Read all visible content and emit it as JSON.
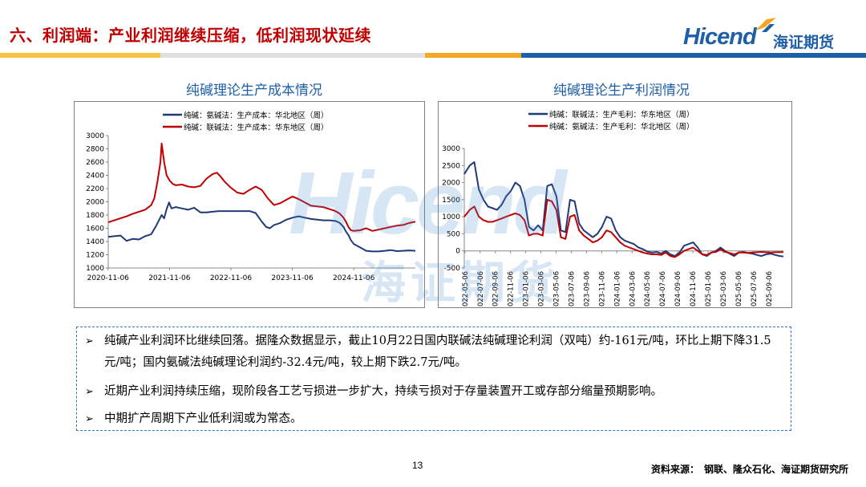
{
  "header": {
    "title": "六、利润端：产业利润继续压缩，低利润现状延续",
    "logo_en": "Hicend",
    "logo_cn": "海证期货",
    "colors": {
      "title": "#c00000",
      "brand_blue": "#1f5fa8",
      "band_blue": "#1f5fa8",
      "band_orange": "#f5a623"
    }
  },
  "watermark": {
    "en": "Hicend",
    "cn": "海证期货"
  },
  "charts": {
    "left_title": "纯碱理论生产成本情况",
    "right_title": "纯碱理论生产利润情况"
  },
  "chart_data": [
    {
      "type": "line",
      "title": "纯碱理论生产成本情况",
      "ylim": [
        1000,
        3000
      ],
      "yticks": [
        "3000",
        "2800",
        "2600",
        "2400",
        "2200",
        "2000",
        "1800",
        "1600",
        "1400",
        "1200",
        "1000"
      ],
      "xticks": [
        "2020-11-06",
        "2021-11-06",
        "2022-11-06",
        "2023-11-06",
        "2024-11-06"
      ],
      "x_range": [
        2020.85,
        2025.85
      ],
      "grid": false,
      "legend": "top",
      "series": [
        {
          "name": "纯碱：氨碱法：生产成本：华北地区（周）",
          "color": "#1f3a7a",
          "x": [
            2020.85,
            2020.95,
            2021.05,
            2021.15,
            2021.25,
            2021.35,
            2021.45,
            2021.55,
            2021.62,
            2021.68,
            2021.72,
            2021.76,
            2021.8,
            2021.84,
            2021.88,
            2021.95,
            2022.05,
            2022.15,
            2022.25,
            2022.35,
            2022.45,
            2022.55,
            2022.65,
            2022.75,
            2022.85,
            2022.95,
            2023.05,
            2023.15,
            2023.25,
            2023.35,
            2023.42,
            2023.48,
            2023.55,
            2023.65,
            2023.75,
            2023.85,
            2023.95,
            2024.05,
            2024.15,
            2024.25,
            2024.35,
            2024.45,
            2024.55,
            2024.62,
            2024.68,
            2024.72,
            2024.76,
            2024.8,
            2024.85,
            2024.95,
            2025.05,
            2025.15,
            2025.25,
            2025.35,
            2025.45,
            2025.55,
            2025.65,
            2025.75,
            2025.85
          ],
          "values": [
            1470,
            1480,
            1490,
            1410,
            1440,
            1430,
            1480,
            1510,
            1620,
            1730,
            1800,
            1750,
            1890,
            1990,
            1900,
            1920,
            1900,
            1880,
            1910,
            1840,
            1840,
            1850,
            1860,
            1860,
            1860,
            1860,
            1860,
            1860,
            1830,
            1700,
            1620,
            1600,
            1650,
            1680,
            1730,
            1760,
            1780,
            1760,
            1740,
            1730,
            1720,
            1720,
            1710,
            1680,
            1620,
            1550,
            1500,
            1420,
            1360,
            1310,
            1260,
            1250,
            1250,
            1260,
            1270,
            1255,
            1260,
            1265,
            1260
          ]
        },
        {
          "name": "纯碱：联碱法：生产成本：华东地区（周）",
          "color": "#c00000",
          "x": [
            2020.85,
            2020.95,
            2021.05,
            2021.15,
            2021.25,
            2021.35,
            2021.45,
            2021.55,
            2021.6,
            2021.65,
            2021.7,
            2021.72,
            2021.76,
            2021.8,
            2021.85,
            2021.9,
            2021.95,
            2022.05,
            2022.15,
            2022.25,
            2022.35,
            2022.45,
            2022.55,
            2022.62,
            2022.68,
            2022.75,
            2022.85,
            2022.95,
            2023.05,
            2023.15,
            2023.25,
            2023.35,
            2023.45,
            2023.55,
            2023.65,
            2023.75,
            2023.85,
            2023.95,
            2024.05,
            2024.15,
            2024.25,
            2024.35,
            2024.45,
            2024.55,
            2024.62,
            2024.68,
            2024.72,
            2024.76,
            2024.8,
            2024.85,
            2024.95,
            2025.05,
            2025.15,
            2025.25,
            2025.35,
            2025.45,
            2025.55,
            2025.65,
            2025.75,
            2025.85
          ],
          "values": [
            1690,
            1720,
            1750,
            1780,
            1820,
            1850,
            1880,
            1950,
            2050,
            2300,
            2600,
            2880,
            2600,
            2400,
            2320,
            2270,
            2250,
            2260,
            2230,
            2220,
            2240,
            2350,
            2420,
            2440,
            2380,
            2300,
            2210,
            2140,
            2120,
            2180,
            2230,
            2180,
            2050,
            1950,
            1980,
            2030,
            2080,
            2040,
            1990,
            1940,
            1930,
            1920,
            1890,
            1860,
            1820,
            1760,
            1700,
            1620,
            1570,
            1560,
            1570,
            1600,
            1560,
            1580,
            1600,
            1620,
            1640,
            1650,
            1680,
            1700
          ]
        }
      ]
    },
    {
      "type": "line",
      "title": "纯碱理论生产利润情况",
      "ylim": [
        -500,
        3000
      ],
      "yticks": [
        "3000",
        "2500",
        "2000",
        "1500",
        "1000",
        "500",
        "0",
        "-500"
      ],
      "xticks": [
        "2022-05-06",
        "2022-07-06",
        "2022-09-06",
        "2022-11-06",
        "2023-01-06",
        "2023-03-06",
        "2023-05-06",
        "2023-07-06",
        "2023-09-06",
        "2023-11-06",
        "2024-01-06",
        "2024-03-06",
        "2024-05-06",
        "2024-07-06",
        "2024-09-06",
        "2024-11-06",
        "2025-01-06",
        "2025-03-06",
        "2025-05-06",
        "2025-07-06",
        "2025-09-06"
      ],
      "x_range": [
        2022.34,
        2025.84
      ],
      "grid": false,
      "legend": "top",
      "series": [
        {
          "name": "纯碱：联碱法：生产毛利：华东地区（周）",
          "color": "#1f3a7a",
          "x": [
            2022.34,
            2022.4,
            2022.45,
            2022.5,
            2022.55,
            2022.6,
            2022.65,
            2022.7,
            2022.75,
            2022.8,
            2022.85,
            2022.9,
            2022.95,
            2023.0,
            2023.05,
            2023.1,
            2023.15,
            2023.2,
            2023.25,
            2023.3,
            2023.35,
            2023.4,
            2023.45,
            2023.5,
            2023.55,
            2023.6,
            2023.65,
            2023.7,
            2023.75,
            2023.8,
            2023.85,
            2023.9,
            2023.95,
            2024.0,
            2024.05,
            2024.1,
            2024.15,
            2024.2,
            2024.25,
            2024.3,
            2024.35,
            2024.4,
            2024.45,
            2024.5,
            2024.55,
            2024.6,
            2024.65,
            2024.7,
            2024.75,
            2024.8,
            2024.85,
            2024.9,
            2024.95,
            2025.0,
            2025.05,
            2025.1,
            2025.15,
            2025.2,
            2025.25,
            2025.3,
            2025.35,
            2025.4,
            2025.45,
            2025.5,
            2025.55,
            2025.6,
            2025.65,
            2025.7,
            2025.75,
            2025.8,
            2025.84
          ],
          "values": [
            2250,
            2500,
            2600,
            1800,
            1500,
            1300,
            1250,
            1200,
            1350,
            1600,
            1750,
            2000,
            1900,
            1500,
            700,
            600,
            750,
            600,
            1900,
            1950,
            1600,
            600,
            550,
            1500,
            1450,
            800,
            600,
            500,
            400,
            500,
            700,
            1000,
            950,
            600,
            400,
            300,
            250,
            200,
            100,
            50,
            -20,
            -50,
            -30,
            -80,
            0,
            -100,
            -150,
            -50,
            150,
            200,
            250,
            100,
            -100,
            -150,
            -50,
            0,
            100,
            0,
            -80,
            -150,
            -50,
            -30,
            -60,
            -80,
            -120,
            -150,
            -100,
            -80,
            -120,
            -150,
            -161
          ]
        },
        {
          "name": "纯碱：氨碱法：生产毛利：华北地区（周）",
          "color": "#c00000",
          "x": [
            2022.34,
            2022.4,
            2022.45,
            2022.5,
            2022.55,
            2022.6,
            2022.65,
            2022.7,
            2022.75,
            2022.8,
            2022.85,
            2022.9,
            2022.95,
            2023.0,
            2023.05,
            2023.1,
            2023.15,
            2023.2,
            2023.25,
            2023.3,
            2023.35,
            2023.4,
            2023.45,
            2023.5,
            2023.55,
            2023.6,
            2023.65,
            2023.7,
            2023.75,
            2023.8,
            2023.85,
            2023.9,
            2023.95,
            2024.0,
            2024.05,
            2024.1,
            2024.15,
            2024.2,
            2024.25,
            2024.3,
            2024.35,
            2024.4,
            2024.45,
            2024.5,
            2024.55,
            2024.6,
            2024.65,
            2024.7,
            2024.75,
            2024.8,
            2024.85,
            2024.9,
            2024.95,
            2025.0,
            2025.05,
            2025.1,
            2025.15,
            2025.2,
            2025.25,
            2025.3,
            2025.35,
            2025.4,
            2025.45,
            2025.5,
            2025.55,
            2025.6,
            2025.65,
            2025.7,
            2025.75,
            2025.8,
            2025.84
          ],
          "values": [
            1000,
            1200,
            1300,
            1000,
            900,
            850,
            850,
            900,
            950,
            1000,
            1050,
            1100,
            1050,
            900,
            450,
            500,
            500,
            450,
            1500,
            1450,
            1200,
            400,
            350,
            1000,
            1050,
            600,
            450,
            350,
            250,
            300,
            400,
            600,
            550,
            400,
            250,
            150,
            100,
            50,
            0,
            -50,
            -80,
            -100,
            -100,
            -120,
            -50,
            -150,
            -180,
            -100,
            0,
            50,
            100,
            0,
            -100,
            -120,
            -50,
            -30,
            50,
            -30,
            -60,
            -100,
            -50,
            -50,
            -60,
            -50,
            -40,
            -30,
            -40,
            -50,
            -40,
            -35,
            -32
          ]
        }
      ]
    }
  ],
  "bullets": [
    "纯碱产业利润环比继续回落。据隆众数据显示，截止10月22日国内联碱法纯碱理论利润（双吨）约-161元/吨，环比上期下降31.5元/吨；国内氨碱法纯碱理论利润约-32.4元/吨，较上期下跌2.7元/吨。",
    "近期产业利润持续压缩，现阶段各工艺亏损进一步扩大，持续亏损对于存量装置开工或存部分缩量预期影响。",
    "中期扩产周期下产业低利润或为常态。"
  ],
  "bullet_glyph": "➢",
  "footer": {
    "page_number": "13",
    "source": "资料来源：　钢联、隆众石化、海证期货研究所"
  }
}
